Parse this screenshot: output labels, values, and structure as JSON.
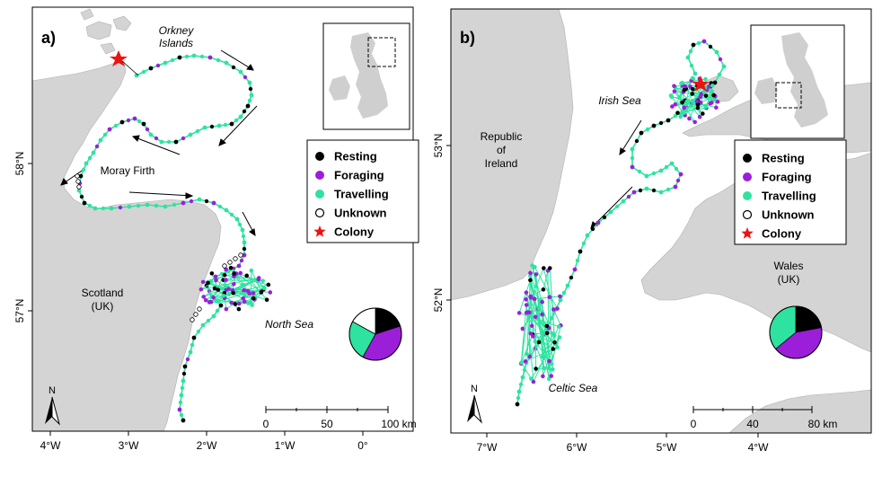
{
  "panels": [
    {
      "id": "a",
      "label": "a)",
      "places": {
        "orkney": [
          "Orkney",
          "Islands"
        ],
        "moray": "Moray Firth",
        "scotland": [
          "Scotland",
          "(UK)"
        ],
        "north_sea": "North Sea"
      },
      "lon_ticks": [
        "4°W",
        "3°W",
        "2°W",
        "1°W",
        "0°"
      ],
      "lat_ticks": [
        "58°N",
        "57°N"
      ],
      "scale": {
        "labels": [
          "0",
          "50",
          "100 km"
        ]
      },
      "north": "N",
      "pie": [
        {
          "state": "Resting",
          "fraction": 0.2
        },
        {
          "state": "Foraging",
          "fraction": 0.38
        },
        {
          "state": "Travelling",
          "fraction": 0.25
        },
        {
          "state": "Unknown",
          "fraction": 0.17
        }
      ]
    },
    {
      "id": "b",
      "label": "b)",
      "places": {
        "irish_sea": "Irish Sea",
        "ireland": [
          "Republic",
          "of",
          "Ireland"
        ],
        "wales": [
          "Wales",
          "(UK)"
        ],
        "celtic_sea": "Celtic Sea"
      },
      "lon_ticks": [
        "7°W",
        "6°W",
        "5°W",
        "4°W"
      ],
      "lat_ticks": [
        "53°N",
        "52°N"
      ],
      "scale": {
        "labels": [
          "0",
          "40",
          "80 km"
        ]
      },
      "north": "N",
      "pie": [
        {
          "state": "Resting",
          "fraction": 0.22
        },
        {
          "state": "Foraging",
          "fraction": 0.42
        },
        {
          "state": "Travelling",
          "fraction": 0.36
        }
      ]
    }
  ],
  "legend": [
    {
      "label": "Resting",
      "marker": "filled-circle",
      "color": "#000000"
    },
    {
      "label": "Foraging",
      "marker": "filled-circle",
      "color": "#9b1fd8"
    },
    {
      "label": "Travelling",
      "marker": "filled-circle",
      "color": "#2ee3a0"
    },
    {
      "label": "Unknown",
      "marker": "open-circle",
      "color": "#000000"
    },
    {
      "label": "Colony",
      "marker": "star",
      "color": "#ee1111"
    }
  ],
  "colors": {
    "land": "#d4d4d4",
    "sea": "#ffffff",
    "coast": "#b0b0b0",
    "resting": "#000000",
    "foraging": "#9b1fd8",
    "travelling": "#2ee3a0",
    "colony": "#ee1111"
  }
}
